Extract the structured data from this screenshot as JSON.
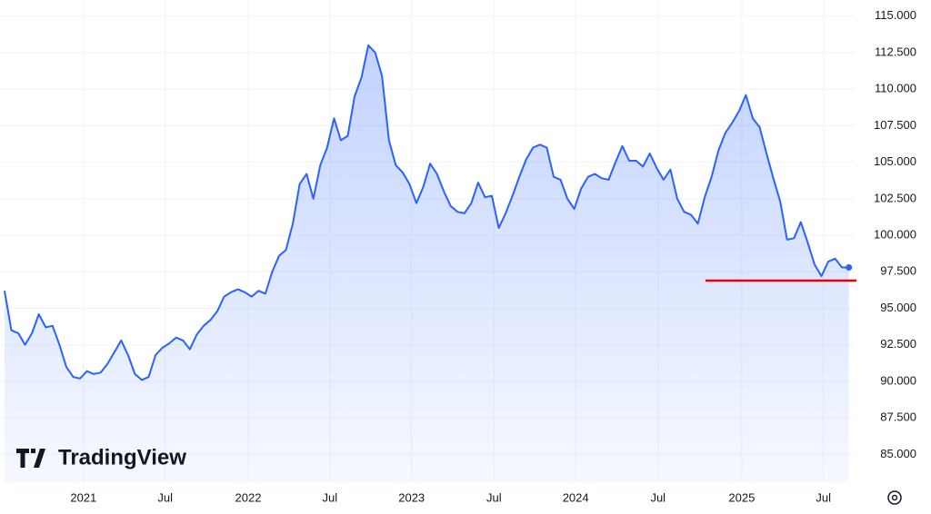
{
  "chart_data": {
    "type": "area",
    "brand": "TradingView",
    "categories": [
      null,
      null,
      null,
      null,
      null,
      null,
      null,
      null,
      null,
      null,
      null,
      null,
      null,
      null,
      null,
      null,
      null,
      null,
      null,
      null,
      null,
      null,
      null,
      null,
      null,
      null,
      null,
      null,
      null,
      null,
      null,
      null,
      null,
      null,
      null,
      null,
      null,
      null,
      null,
      null,
      null,
      null,
      null,
      null,
      null,
      null,
      null,
      null,
      null,
      null,
      null,
      null,
      null,
      null,
      null,
      null,
      null,
      null,
      null,
      null,
      null,
      null,
      null,
      null,
      null,
      null,
      null,
      null,
      null,
      null,
      null,
      null,
      null,
      null,
      null,
      null,
      null,
      null,
      null,
      null,
      null,
      null,
      null,
      null,
      null,
      null,
      null,
      null,
      null,
      null,
      null,
      null,
      null,
      null,
      null,
      null,
      null,
      null,
      null,
      null,
      null,
      null,
      null,
      null,
      null,
      null,
      null,
      null,
      null,
      null,
      null,
      null,
      null,
      null,
      null,
      null,
      null,
      null,
      null,
      null,
      null,
      null,
      null,
      null
    ],
    "values": [
      96.2,
      93.5,
      93.3,
      92.5,
      93.3,
      94.6,
      93.7,
      93.8,
      92.5,
      91.0,
      90.3,
      90.2,
      90.7,
      90.5,
      90.6,
      91.2,
      92.0,
      92.8,
      91.8,
      90.5,
      90.1,
      90.3,
      91.8,
      92.3,
      92.6,
      93.0,
      92.8,
      92.2,
      93.2,
      93.8,
      94.2,
      94.8,
      95.8,
      96.1,
      96.3,
      96.1,
      95.8,
      96.2,
      96.0,
      97.5,
      98.6,
      99.0,
      100.8,
      103.5,
      104.2,
      102.5,
      104.8,
      106.0,
      108.0,
      106.5,
      106.8,
      109.5,
      110.8,
      113.0,
      112.5,
      110.9,
      106.5,
      104.8,
      104.3,
      103.5,
      102.2,
      103.3,
      104.9,
      104.2,
      103.0,
      102.0,
      101.6,
      101.5,
      102.2,
      103.6,
      102.6,
      102.7,
      100.5,
      101.5,
      102.7,
      104.0,
      105.2,
      106.0,
      106.2,
      106.0,
      104.0,
      103.8,
      102.5,
      101.8,
      103.2,
      104.0,
      104.2,
      103.9,
      103.8,
      105.0,
      106.1,
      105.1,
      105.1,
      104.7,
      105.6,
      104.6,
      103.8,
      104.5,
      102.5,
      101.6,
      101.4,
      100.8,
      102.6,
      104.0,
      105.8,
      107.0,
      107.7,
      108.5,
      109.6,
      108.0,
      107.4,
      105.6,
      103.9,
      102.3,
      99.7,
      99.8,
      100.9,
      99.5,
      98.0,
      97.2,
      98.2,
      98.4,
      97.8,
      97.8
    ],
    "color": "#2962ff",
    "xlim": [
      -0.66,
      123.84
    ],
    "xticks": [
      {
        "value": 11.5,
        "label": "2021"
      },
      {
        "value": 23.4,
        "label": "Jul"
      },
      {
        "value": 35.5,
        "label": "2022"
      },
      {
        "value": 47.4,
        "label": "Jul"
      },
      {
        "value": 59.3,
        "label": "2023"
      },
      {
        "value": 71.3,
        "label": "Jul"
      },
      {
        "value": 83.2,
        "label": "2024"
      },
      {
        "value": 95.2,
        "label": "Jul"
      },
      {
        "value": 107.4,
        "label": "2025"
      },
      {
        "value": 119.3,
        "label": "Jul"
      }
    ],
    "ylim": [
      83.1,
      116.1
    ],
    "yticks": [
      {
        "value": 85,
        "label": "85.000"
      },
      {
        "value": 87.5,
        "label": "87.500"
      },
      {
        "value": 90,
        "label": "90.000"
      },
      {
        "value": 92.5,
        "label": "92.500"
      },
      {
        "value": 95,
        "label": "95.000"
      },
      {
        "value": 97.5,
        "label": "97.500"
      },
      {
        "value": 100,
        "label": "100.000"
      },
      {
        "value": 102.5,
        "label": "102.500"
      },
      {
        "value": 105,
        "label": "105.000"
      },
      {
        "value": 107.5,
        "label": "107.500"
      },
      {
        "value": 110,
        "label": "110.000"
      },
      {
        "value": 112.5,
        "label": "112.500"
      },
      {
        "value": 115,
        "label": "115.000"
      }
    ],
    "grid": true,
    "reference_line": {
      "value": 96.9,
      "x": [
        102.1,
        124.1
      ],
      "color": "#e60000"
    }
  }
}
